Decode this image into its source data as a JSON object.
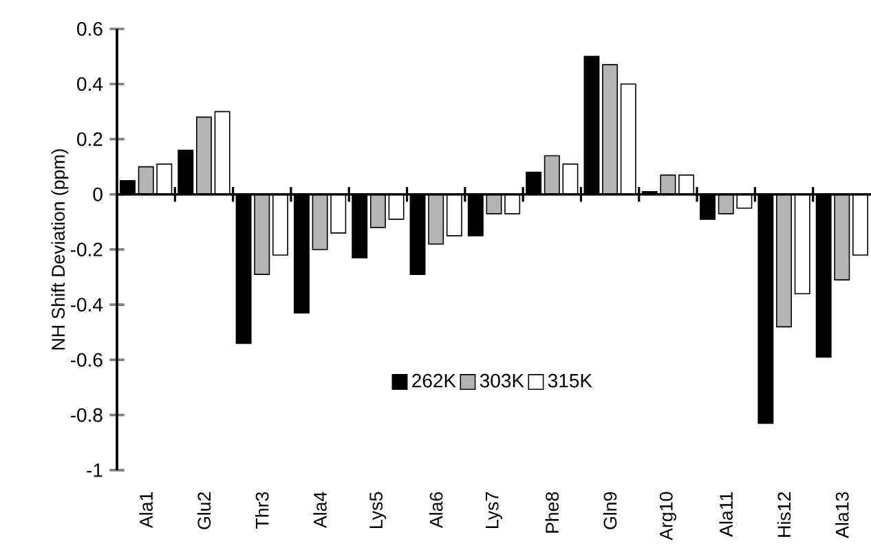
{
  "chart_data": {
    "type": "bar",
    "ylabel": "NH Shift Deviation (ppm)",
    "categories": [
      "Ala1",
      "Glu2",
      "Thr3",
      "Ala4",
      "Lys5",
      "Ala6",
      "Lys7",
      "Phe8",
      "Gln9",
      "Arg10",
      "Ala11",
      "His12",
      "Ala13"
    ],
    "series": [
      {
        "name": "262K",
        "color": "#000000",
        "values": [
          0.05,
          0.16,
          -0.54,
          -0.43,
          -0.23,
          -0.29,
          -0.15,
          0.08,
          0.5,
          0.01,
          -0.09,
          -0.83,
          -0.59
        ]
      },
      {
        "name": "303K",
        "color": "#b4b4b4",
        "values": [
          0.1,
          0.28,
          -0.29,
          -0.2,
          -0.12,
          -0.18,
          -0.07,
          0.14,
          0.47,
          0.07,
          -0.07,
          -0.48,
          -0.31
        ]
      },
      {
        "name": "315K",
        "color": "#ffffff",
        "values": [
          0.11,
          0.3,
          -0.22,
          -0.14,
          -0.09,
          -0.15,
          -0.07,
          0.11,
          0.4,
          0.07,
          -0.05,
          -0.36,
          -0.22
        ]
      }
    ],
    "ylim": [
      -1,
      0.6
    ],
    "yticks": [
      -1,
      -0.8,
      -0.6,
      -0.4,
      -0.2,
      0,
      0.2,
      0.4,
      0.6
    ],
    "legend": "bottom"
  }
}
